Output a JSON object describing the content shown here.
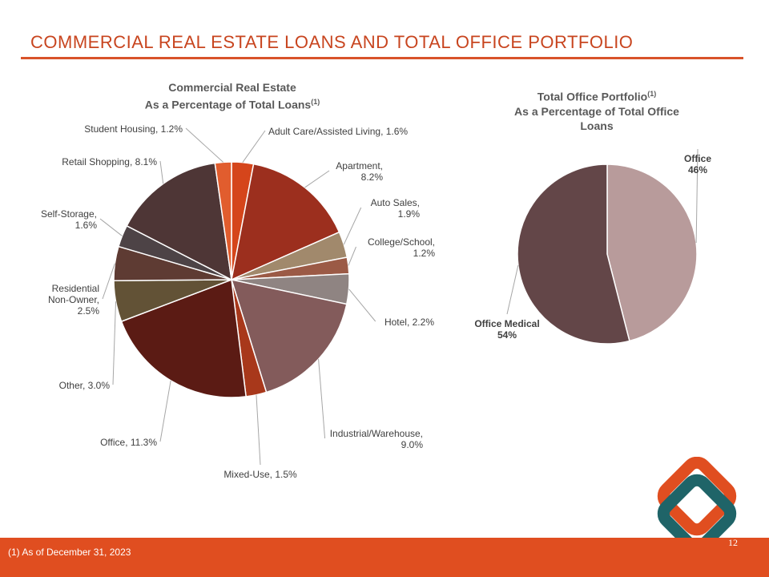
{
  "header": {
    "title": "COMMERCIAL REAL ESTATE LOANS AND TOTAL OFFICE PORTFOLIO"
  },
  "chart_data": [
    {
      "type": "pie",
      "title_line1": "Commercial Real Estate",
      "title_line2": "As a Percentage of Total Loans",
      "title_sup": "(1)",
      "slices": [
        {
          "label": "Adult Care/Assisted Living, 1.6%",
          "value": 1.6,
          "color": "#d5451b"
        },
        {
          "label": "Apartment,\n8.2%",
          "value": 8.2,
          "color": "#9c2f1e"
        },
        {
          "label": "Auto Sales,\n1.9%",
          "value": 1.9,
          "color": "#a1896c"
        },
        {
          "label": "College/School,\n1.2%",
          "value": 1.2,
          "color": "#9b5a46"
        },
        {
          "label": "Hotel, 2.2%",
          "value": 2.2,
          "color": "#8f8482"
        },
        {
          "label": "Industrial/Warehouse,\n9.0%",
          "value": 9.0,
          "color": "#835b5b"
        },
        {
          "label": "Mixed-Use, 1.5%",
          "value": 1.5,
          "color": "#a8381b"
        },
        {
          "label": "Office, 11.3%",
          "value": 11.3,
          "color": "#5b1b14"
        },
        {
          "label": "Other, 3.0%",
          "value": 3.0,
          "color": "#625236"
        },
        {
          "label": "Residential\nNon-Owner,\n2.5%",
          "value": 2.5,
          "color": "#5e3b33"
        },
        {
          "label": "Self-Storage,\n1.6%",
          "value": 1.6,
          "color": "#4d4346"
        },
        {
          "label": "Retail Shopping, 8.1%",
          "value": 8.1,
          "color": "#4e3636"
        },
        {
          "label": "Student Housing, 1.2%",
          "value": 1.2,
          "color": "#e15d2e"
        }
      ]
    },
    {
      "type": "pie",
      "title_line1": "Total Office Portfolio",
      "title_sup": "(1)",
      "title_line2": "As a Percentage of Total Office",
      "title_line3": "Loans",
      "slices": [
        {
          "label": "Office\n46%",
          "value": 46,
          "color": "#b89b9b"
        },
        {
          "label": "Office Medical\n54%",
          "value": 54,
          "color": "#634648"
        }
      ]
    }
  ],
  "footer": {
    "footnote": "(1)  As of December 31, 2023",
    "page_number": "12"
  },
  "colors": {
    "accent": "#e04e20",
    "logo_teal": "#1f6468",
    "logo_orange": "#e04e20"
  }
}
